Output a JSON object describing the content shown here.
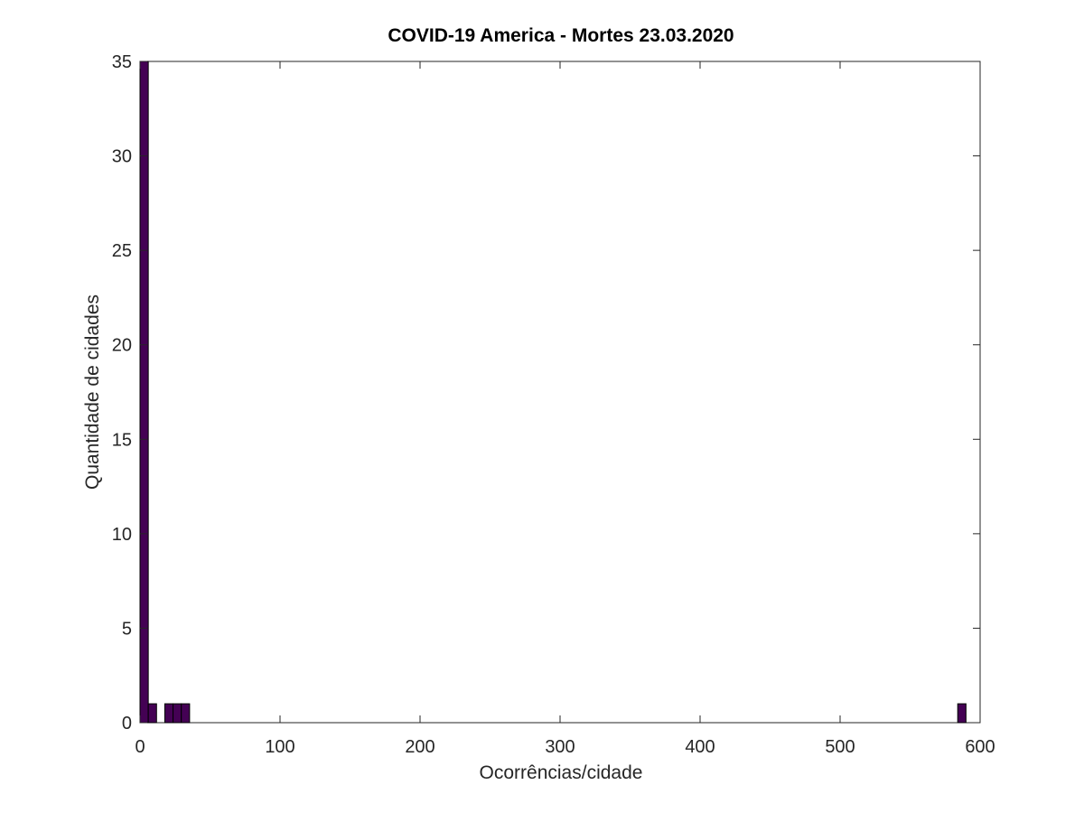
{
  "chart_data": {
    "type": "bar",
    "title": "COVID-19 America - Mortes 23.03.2020",
    "xlabel": "Ocorrências/cidade",
    "ylabel": "Quantidade de cidades",
    "xlim": [
      0,
      600
    ],
    "ylim": [
      0,
      35
    ],
    "xticks": [
      "0",
      "100",
      "200",
      "300",
      "400",
      "500",
      "600"
    ],
    "yticks": [
      "0",
      "5",
      "10",
      "15",
      "20",
      "25",
      "30",
      "35"
    ],
    "grid": false,
    "bar_color": "#440154",
    "bars": [
      {
        "x0": 0,
        "x1": 5.9,
        "value": 35
      },
      {
        "x0": 5.9,
        "x1": 11.8,
        "value": 1
      },
      {
        "x0": 17.7,
        "x1": 23.6,
        "value": 1
      },
      {
        "x0": 23.6,
        "x1": 29.5,
        "value": 1
      },
      {
        "x0": 29.5,
        "x1": 35.4,
        "value": 1
      },
      {
        "x0": 584,
        "x1": 589.9,
        "value": 1
      }
    ]
  }
}
